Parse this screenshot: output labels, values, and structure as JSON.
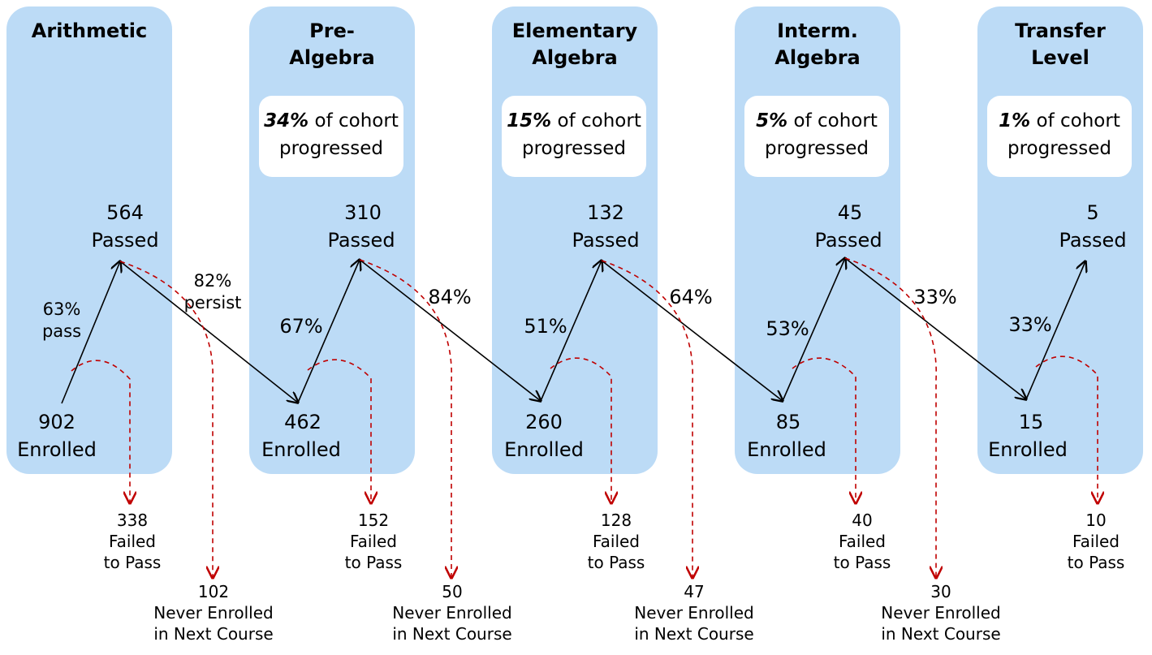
{
  "levels": [
    {
      "title": "Arithmetic",
      "cohort_pct": "",
      "cohort_text": "",
      "passed": "564",
      "passed_label": "Passed",
      "enrolled": "902",
      "enrolled_label": "Enrolled",
      "pass_rate": "63%\npass",
      "failed": "338\nFailed\nto Pass",
      "never": "102\nNever Enrolled\nin Next Course",
      "persist": "82%\npersist"
    },
    {
      "title": "Pre-\nAlgebra",
      "cohort_pct": "34%",
      "cohort_text": " of cohort\nprogressed",
      "passed": "310",
      "passed_label": "Passed",
      "enrolled": "462",
      "enrolled_label": "Enrolled",
      "pass_rate": "67%",
      "failed": "152\nFailed\nto Pass",
      "never": "50\nNever Enrolled\nin Next Course",
      "persist": "84%"
    },
    {
      "title": "Elementary\nAlgebra",
      "cohort_pct": "15%",
      "cohort_text": " of cohort\nprogressed",
      "passed": "132",
      "passed_label": "Passed",
      "enrolled": "260",
      "enrolled_label": "Enrolled",
      "pass_rate": "51%",
      "failed": "128\nFailed\nto Pass",
      "never": "47\nNever Enrolled\nin Next Course",
      "persist": "64%"
    },
    {
      "title": "Interm.\nAlgebra",
      "cohort_pct": "5%",
      "cohort_text": " of cohort\nprogressed",
      "passed": "45",
      "passed_label": "Passed",
      "enrolled": "85",
      "enrolled_label": "Enrolled",
      "pass_rate": "53%",
      "failed": "40\nFailed\nto Pass",
      "never": "30\nNever Enrolled\nin Next Course",
      "persist": "33%"
    },
    {
      "title": "Transfer\nLevel",
      "cohort_pct": "1%",
      "cohort_text": " of cohort\nprogressed",
      "passed": "5",
      "passed_label": "Passed",
      "enrolled": "15",
      "enrolled_label": "Enrolled",
      "pass_rate": "33%",
      "failed": "10\nFailed\nto Pass",
      "never": "",
      "persist": ""
    }
  ],
  "colors": {
    "panel": "#bcdbf6",
    "arrow": "#000000",
    "dashed": "#c00000"
  }
}
